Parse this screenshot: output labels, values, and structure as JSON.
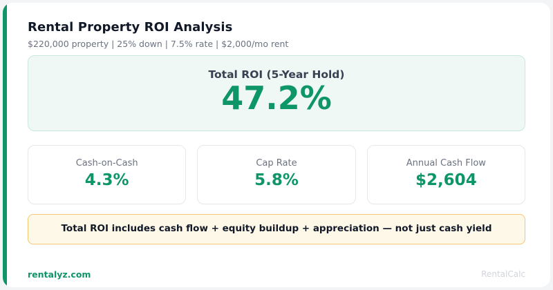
{
  "header": {
    "title": "Rental Property ROI Analysis",
    "subtitle": "$220,000 property | 25% down | 7.5% rate | $2,000/mo rent"
  },
  "hero": {
    "label": "Total ROI (5-Year Hold)",
    "value": "47.2%"
  },
  "metrics": [
    {
      "label": "Cash-on-Cash",
      "value": "4.3%"
    },
    {
      "label": "Cap Rate",
      "value": "5.8%"
    },
    {
      "label": "Annual Cash Flow",
      "value": "$2,604"
    }
  ],
  "banner": {
    "text": "Total ROI includes cash flow + equity buildup + appreciation — not just cash yield"
  },
  "footer": {
    "brand": "rentalyz.com",
    "app_name": "RentalCalc"
  },
  "colors": {
    "accent": "#0e9668",
    "hero_bg": "#eff8f4",
    "banner_bg": "#fdf8e7",
    "banner_border": "#f3c672"
  }
}
